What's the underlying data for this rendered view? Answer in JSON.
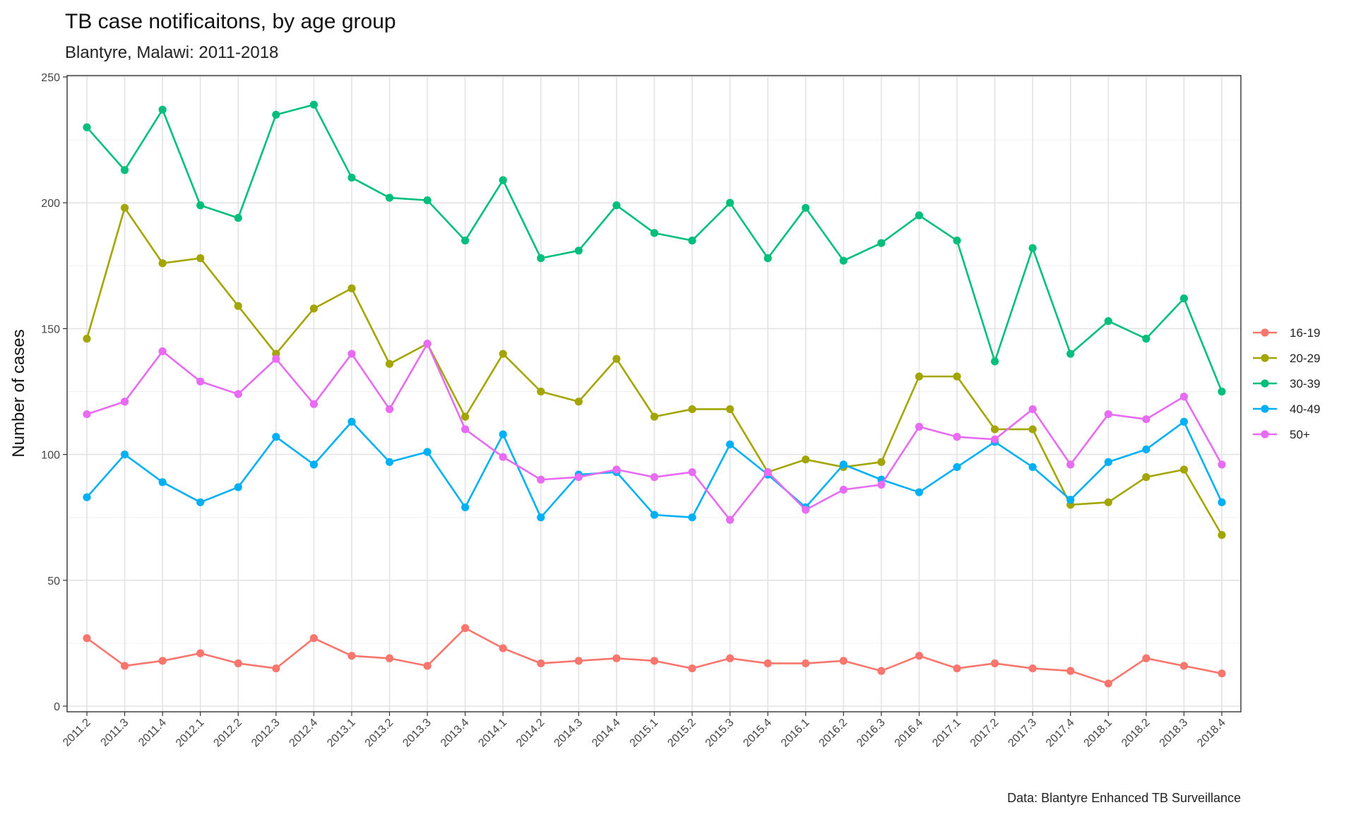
{
  "chart_data": {
    "type": "line",
    "title": "TB case notificaitons, by age group",
    "subtitle": "Blantyre, Malawi: 2011-2018",
    "xlabel": "",
    "ylabel": "Number of cases",
    "caption": "Data: Blantyre Enhanced TB Surveillance",
    "ylim": [
      0,
      250
    ],
    "yticks": [
      0,
      50,
      100,
      150,
      200,
      250
    ],
    "grid": true,
    "legend_position": "right",
    "categories": [
      "2011.2",
      "2011.3",
      "2011.4",
      "2012.1",
      "2012.2",
      "2012.3",
      "2012.4",
      "2013.1",
      "2013.2",
      "2013.3",
      "2013.4",
      "2014.1",
      "2014.2",
      "2014.3",
      "2014.4",
      "2015.1",
      "2015.2",
      "2015.3",
      "2015.4",
      "2016.1",
      "2016.2",
      "2016.3",
      "2016.4",
      "2017.1",
      "2017.2",
      "2017.3",
      "2017.4",
      "2018.1",
      "2018.2",
      "2018.3",
      "2018.4"
    ],
    "series": [
      {
        "name": "16-19",
        "color": "#F8766D",
        "values": [
          27,
          16,
          18,
          21,
          17,
          15,
          27,
          20,
          19,
          16,
          31,
          23,
          17,
          18,
          19,
          18,
          15,
          19,
          17,
          17,
          18,
          14,
          20,
          15,
          17,
          15,
          14,
          9,
          19,
          16,
          13
        ]
      },
      {
        "name": "20-29",
        "color": "#A3A500",
        "values": [
          146,
          198,
          176,
          178,
          159,
          140,
          158,
          166,
          136,
          144,
          115,
          140,
          125,
          121,
          138,
          115,
          118,
          118,
          93,
          98,
          95,
          97,
          131,
          131,
          110,
          110,
          80,
          81,
          91,
          94,
          68
        ]
      },
      {
        "name": "30-39",
        "color": "#00BF7D",
        "values": [
          230,
          213,
          237,
          199,
          194,
          235,
          239,
          210,
          202,
          201,
          185,
          209,
          178,
          181,
          199,
          188,
          185,
          200,
          178,
          198,
          177,
          184,
          195,
          185,
          137,
          182,
          140,
          153,
          146,
          162,
          125
        ]
      },
      {
        "name": "40-49",
        "color": "#00B0F6",
        "values": [
          83,
          100,
          89,
          81,
          87,
          107,
          96,
          113,
          97,
          101,
          79,
          108,
          75,
          92,
          93,
          76,
          75,
          104,
          92,
          79,
          96,
          90,
          85,
          95,
          105,
          95,
          82,
          97,
          102,
          113,
          81
        ]
      },
      {
        "name": "50+",
        "color": "#E76BF3",
        "values": [
          116,
          121,
          141,
          129,
          124,
          138,
          120,
          140,
          118,
          144,
          110,
          99,
          90,
          91,
          94,
          91,
          93,
          74,
          93,
          78,
          86,
          88,
          111,
          107,
          106,
          118,
          96,
          116,
          114,
          123,
          96
        ]
      }
    ]
  }
}
